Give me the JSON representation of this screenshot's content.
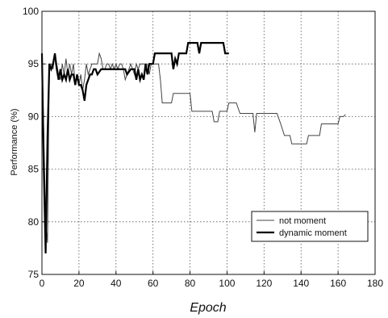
{
  "chart_data": {
    "type": "line",
    "xlabel": "Epoch",
    "ylabel": "Performance (%)",
    "xlim": [
      0,
      180
    ],
    "ylim": [
      75,
      100
    ],
    "xticks": [
      0,
      20,
      40,
      60,
      80,
      100,
      120,
      140,
      160,
      180
    ],
    "yticks": [
      75,
      80,
      85,
      90,
      95,
      100
    ],
    "grid": true,
    "legend_position": "bottom-right",
    "series": [
      {
        "name": "not moment",
        "color": "#444444",
        "style": "thin",
        "points": [
          [
            0,
            96.0
          ],
          [
            1,
            88.5
          ],
          [
            2,
            80.0
          ],
          [
            3,
            78.0
          ],
          [
            4,
            95.0
          ],
          [
            5,
            95.0
          ],
          [
            6,
            94.5
          ],
          [
            7,
            96.0
          ],
          [
            8,
            95.0
          ],
          [
            9,
            94.0
          ],
          [
            10,
            93.5
          ],
          [
            11,
            95.0
          ],
          [
            12,
            94.0
          ],
          [
            13,
            95.5
          ],
          [
            14,
            94.0
          ],
          [
            15,
            95.0
          ],
          [
            16,
            94.0
          ],
          [
            17,
            95.0
          ],
          [
            18,
            93.0
          ],
          [
            19,
            94.0
          ],
          [
            20,
            93.0
          ],
          [
            21,
            94.0
          ],
          [
            22,
            92.5
          ],
          [
            23,
            93.5
          ],
          [
            24,
            95.0
          ],
          [
            25,
            94.0
          ],
          [
            26,
            94.5
          ],
          [
            27,
            95.0
          ],
          [
            28,
            95.0
          ],
          [
            29,
            95.0
          ],
          [
            30,
            95.0
          ],
          [
            31,
            96.0
          ],
          [
            32,
            95.5
          ],
          [
            33,
            94.5
          ],
          [
            34,
            94.5
          ],
          [
            35,
            95.0
          ],
          [
            36,
            95.0
          ],
          [
            37,
            94.5
          ],
          [
            38,
            95.0
          ],
          [
            39,
            94.5
          ],
          [
            40,
            95.0
          ],
          [
            41,
            94.5
          ],
          [
            42,
            95.0
          ],
          [
            43,
            95.0
          ],
          [
            44,
            94.5
          ],
          [
            45,
            93.5
          ],
          [
            46,
            94.0
          ],
          [
            47,
            94.5
          ],
          [
            48,
            95.0
          ],
          [
            49,
            94.5
          ],
          [
            50,
            94.0
          ],
          [
            51,
            95.0
          ],
          [
            52,
            94.5
          ],
          [
            53,
            95.0
          ],
          [
            54,
            95.0
          ],
          [
            55,
            95.0
          ],
          [
            56,
            95.0
          ],
          [
            57,
            95.0
          ],
          [
            58,
            94.0
          ],
          [
            59,
            95.0
          ],
          [
            60,
            95.0
          ],
          [
            61,
            95.0
          ],
          [
            62,
            95.0
          ],
          [
            63,
            95.0
          ],
          [
            64,
            93.5
          ],
          [
            65,
            91.3
          ],
          [
            66,
            91.3
          ],
          [
            68,
            91.3
          ],
          [
            70,
            91.3
          ],
          [
            71,
            92.2
          ],
          [
            75,
            92.2
          ],
          [
            79,
            92.2
          ],
          [
            80,
            92.2
          ],
          [
            81,
            90.5
          ],
          [
            85,
            90.5
          ],
          [
            90,
            90.5
          ],
          [
            92,
            90.5
          ],
          [
            93,
            89.5
          ],
          [
            95,
            89.5
          ],
          [
            96,
            90.5
          ],
          [
            98,
            90.5
          ],
          [
            100,
            90.5
          ],
          [
            101,
            91.3
          ],
          [
            105,
            91.3
          ],
          [
            107,
            90.3
          ],
          [
            110,
            90.3
          ],
          [
            114,
            90.3
          ],
          [
            115,
            88.5
          ],
          [
            116,
            90.3
          ],
          [
            120,
            90.3
          ],
          [
            125,
            90.3
          ],
          [
            127,
            90.3
          ],
          [
            129,
            89.3
          ],
          [
            131,
            88.2
          ],
          [
            134,
            88.2
          ],
          [
            135,
            87.4
          ],
          [
            140,
            87.4
          ],
          [
            143,
            87.4
          ],
          [
            144,
            88.2
          ],
          [
            148,
            88.2
          ],
          [
            150,
            88.2
          ],
          [
            151,
            89.3
          ],
          [
            156,
            89.3
          ],
          [
            160,
            89.3
          ],
          [
            161,
            90.0
          ],
          [
            163,
            90.0
          ],
          [
            164,
            90.2
          ]
        ]
      },
      {
        "name": "dynamic moment",
        "color": "#000000",
        "style": "thick",
        "points": [
          [
            0,
            96.0
          ],
          [
            1,
            85.0
          ],
          [
            2,
            77.0
          ],
          [
            3,
            88.0
          ],
          [
            4,
            95.0
          ],
          [
            5,
            94.5
          ],
          [
            6,
            95.0
          ],
          [
            7,
            96.0
          ],
          [
            8,
            94.5
          ],
          [
            9,
            93.5
          ],
          [
            10,
            94.5
          ],
          [
            11,
            93.5
          ],
          [
            12,
            94.0
          ],
          [
            13,
            93.5
          ],
          [
            14,
            94.5
          ],
          [
            15,
            93.5
          ],
          [
            16,
            94.0
          ],
          [
            17,
            94.0
          ],
          [
            18,
            93.0
          ],
          [
            19,
            94.0
          ],
          [
            20,
            93.0
          ],
          [
            21,
            93.0
          ],
          [
            22,
            92.5
          ],
          [
            23,
            91.5
          ],
          [
            24,
            93.0
          ],
          [
            25,
            93.5
          ],
          [
            26,
            94.0
          ],
          [
            27,
            94.0
          ],
          [
            28,
            94.5
          ],
          [
            29,
            94.5
          ],
          [
            30,
            94.0
          ],
          [
            32,
            94.5
          ],
          [
            35,
            94.5
          ],
          [
            38,
            94.5
          ],
          [
            40,
            94.5
          ],
          [
            43,
            94.5
          ],
          [
            45,
            94.5
          ],
          [
            46,
            94.0
          ],
          [
            48,
            94.5
          ],
          [
            50,
            94.5
          ],
          [
            51,
            93.5
          ],
          [
            52,
            94.5
          ],
          [
            53,
            93.5
          ],
          [
            54,
            94.0
          ],
          [
            55,
            93.5
          ],
          [
            56,
            95.0
          ],
          [
            57,
            94.0
          ],
          [
            58,
            95.0
          ],
          [
            59,
            95.0
          ],
          [
            60,
            95.0
          ],
          [
            61,
            96.0
          ],
          [
            62,
            96.0
          ],
          [
            65,
            96.0
          ],
          [
            68,
            96.0
          ],
          [
            70,
            96.0
          ],
          [
            71,
            94.5
          ],
          [
            72,
            95.5
          ],
          [
            73,
            95.0
          ],
          [
            74,
            96.0
          ],
          [
            76,
            96.0
          ],
          [
            78,
            96.0
          ],
          [
            79,
            97.0
          ],
          [
            80,
            97.0
          ],
          [
            82,
            97.0
          ],
          [
            84,
            97.0
          ],
          [
            85,
            96.0
          ],
          [
            86,
            97.0
          ],
          [
            88,
            97.0
          ],
          [
            90,
            97.0
          ],
          [
            93,
            97.0
          ],
          [
            96,
            97.0
          ],
          [
            98,
            97.0
          ],
          [
            99,
            96.0
          ],
          [
            100,
            96.0
          ],
          [
            101,
            96.0
          ]
        ]
      }
    ]
  }
}
